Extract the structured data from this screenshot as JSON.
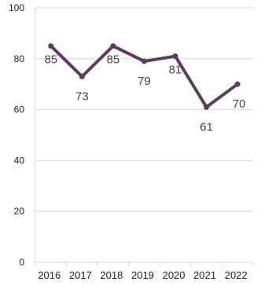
{
  "chart_data": {
    "type": "line",
    "title": "",
    "xlabel": "",
    "ylabel": "",
    "categories": [
      "2016",
      "2017",
      "2018",
      "2019",
      "2020",
      "2021",
      "2022"
    ],
    "series": [
      {
        "values": [
          85,
          73,
          85,
          79,
          81,
          61,
          70
        ]
      }
    ],
    "data_labels": [
      "85",
      "73",
      "85",
      "79",
      "81",
      "61",
      "70"
    ],
    "ylim": [
      0,
      100
    ],
    "yticks": [
      0,
      20,
      40,
      60,
      80,
      100
    ],
    "ytick_labels": [
      "0",
      "20",
      "40",
      "60",
      "80",
      "100"
    ],
    "grid": "horizontal",
    "legend": "none",
    "line_color": "#5c3d5e",
    "grid_color": "#d9d9d9"
  }
}
